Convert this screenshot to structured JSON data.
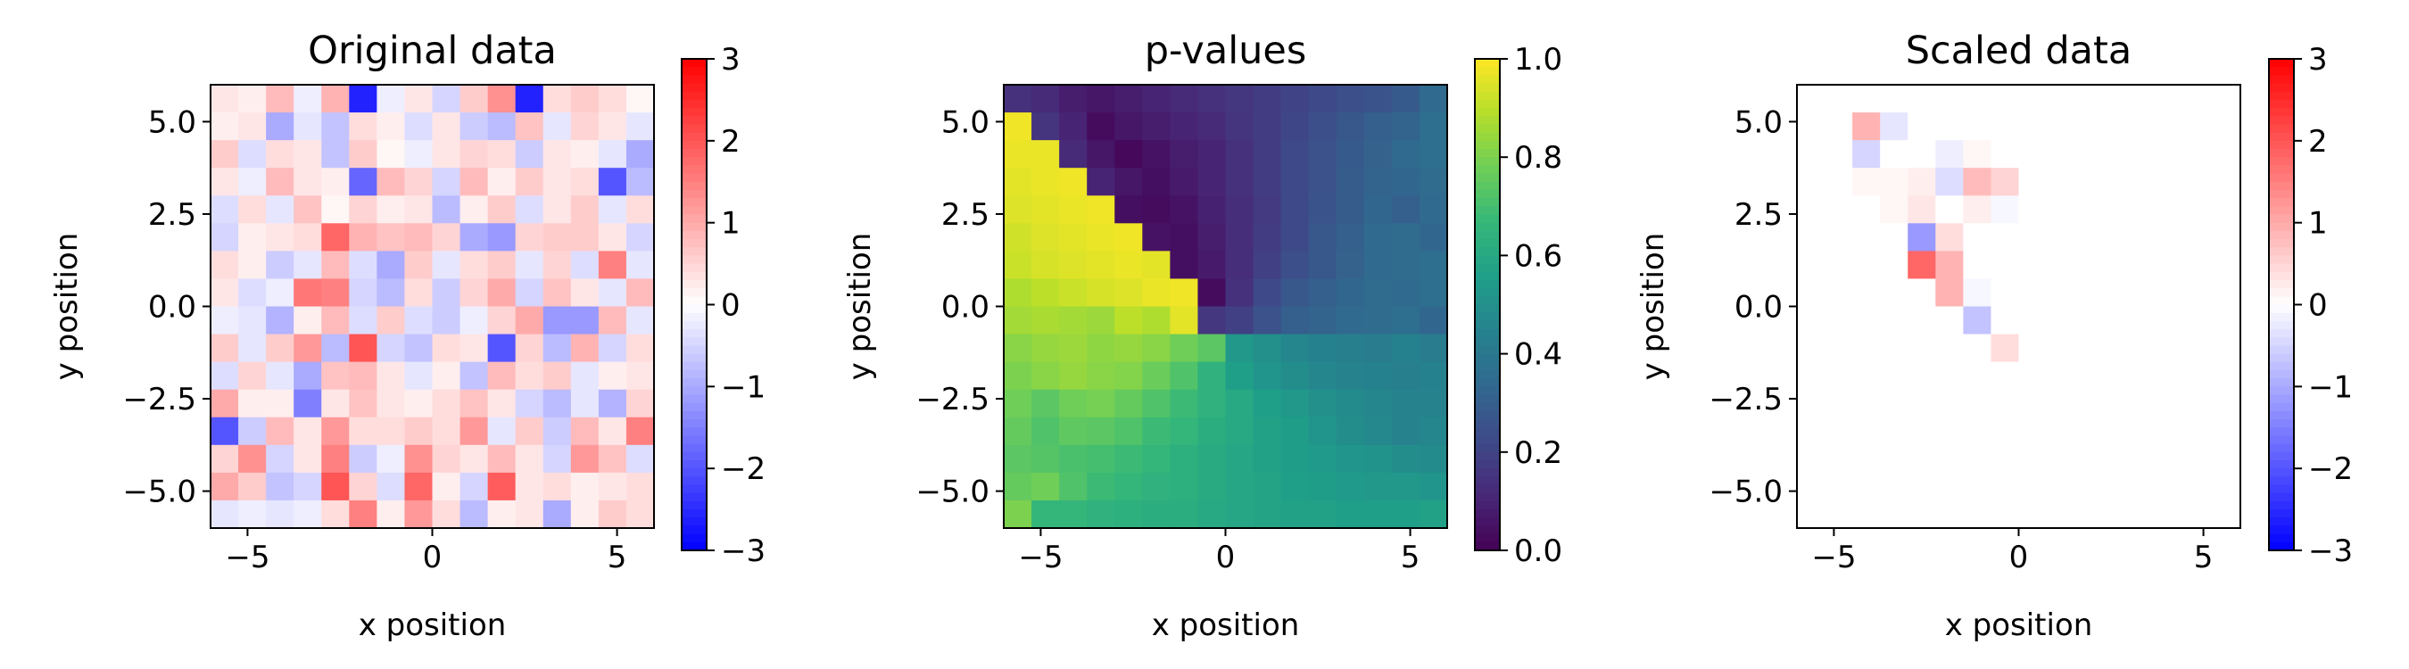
{
  "chart_data": [
    {
      "type": "heatmap",
      "title": "Original data",
      "xlabel": "x position",
      "ylabel": "y position",
      "xlim": [
        -6,
        6
      ],
      "ylim": [
        -6,
        6
      ],
      "x_ticks": [
        "−5",
        "0",
        "5"
      ],
      "y_ticks": [
        "−5.0",
        "−2.5",
        "0.0",
        "2.5",
        "5.0"
      ],
      "colormap": "bwr",
      "colorbar": {
        "range": [
          -3,
          3
        ],
        "ticks": [
          "−3",
          "−2",
          "−1",
          "0",
          "1",
          "2",
          "3"
        ]
      },
      "grid": {
        "nx": 16,
        "ny": 16,
        "cell_size": 0.75,
        "x0": -6,
        "y_top": 6
      },
      "values": [
        [
          0.3,
          0.2,
          0.8,
          -0.2,
          0.9,
          -2.6,
          -0.2,
          0.3,
          -0.5,
          0.6,
          1.3,
          -2.6,
          0.4,
          0.6,
          0.4,
          0.1
        ],
        [
          0.2,
          0.3,
          -1.0,
          -0.3,
          -0.7,
          0.4,
          0.2,
          -0.4,
          0.3,
          -0.6,
          -0.8,
          0.7,
          -0.3,
          0.5,
          0.3,
          -0.3
        ],
        [
          0.6,
          -0.4,
          0.4,
          0.3,
          -0.7,
          0.6,
          0.1,
          -0.2,
          0.3,
          0.5,
          0.4,
          -0.6,
          0.3,
          0.2,
          -0.3,
          -1.0
        ],
        [
          0.3,
          -0.2,
          0.8,
          0.3,
          0.2,
          -1.8,
          0.8,
          0.5,
          -0.5,
          0.8,
          0.2,
          0.6,
          0.3,
          0.4,
          -2.0,
          -0.8
        ],
        [
          -0.4,
          0.4,
          -0.3,
          0.7,
          0.1,
          0.5,
          0.2,
          0.3,
          -0.8,
          0.2,
          0.6,
          -0.4,
          0.3,
          0.6,
          -0.3,
          0.4
        ],
        [
          -0.5,
          0.2,
          0.3,
          0.4,
          1.8,
          0.9,
          0.7,
          0.8,
          0.5,
          -1.0,
          -1.2,
          0.5,
          0.6,
          0.6,
          0.3,
          -0.5
        ],
        [
          0.4,
          0.2,
          -0.6,
          -0.3,
          0.8,
          -0.4,
          -1.0,
          0.6,
          -0.3,
          0.4,
          0.6,
          -0.3,
          0.5,
          -0.4,
          1.5,
          -0.3
        ],
        [
          0.3,
          -0.4,
          -0.2,
          1.6,
          1.5,
          -0.5,
          -0.8,
          0.4,
          -0.6,
          0.5,
          1.0,
          -0.5,
          0.7,
          0.3,
          -0.3,
          0.8
        ],
        [
          -0.2,
          -0.3,
          -0.9,
          0.2,
          0.8,
          -0.4,
          0.6,
          -0.4,
          -0.6,
          -0.2,
          0.5,
          1.0,
          -1.2,
          -1.2,
          0.8,
          -0.3
        ],
        [
          0.6,
          -0.3,
          0.6,
          1.2,
          -0.8,
          2.0,
          -0.5,
          -0.7,
          0.4,
          0.3,
          -2.0,
          0.5,
          -0.8,
          0.9,
          -0.5,
          0.4
        ],
        [
          -0.4,
          0.5,
          -0.3,
          -1.0,
          0.7,
          0.8,
          0.3,
          -0.3,
          0.2,
          -0.7,
          0.8,
          0.4,
          0.6,
          -0.3,
          0.2,
          0.3
        ],
        [
          1.0,
          0.2,
          0.2,
          -1.5,
          0.3,
          0.7,
          0.3,
          0.2,
          0.4,
          0.7,
          0.3,
          -0.5,
          -0.8,
          -0.3,
          -0.9,
          0.5
        ],
        [
          -2.0,
          -0.6,
          0.8,
          0.3,
          1.2,
          0.4,
          0.4,
          0.6,
          0.4,
          1.2,
          -0.3,
          0.6,
          -0.6,
          0.8,
          0.3,
          1.5
        ],
        [
          0.5,
          1.3,
          -0.5,
          0.3,
          1.5,
          -0.6,
          -0.2,
          1.3,
          0.5,
          0.3,
          0.8,
          0.3,
          -0.5,
          1.2,
          0.7,
          -0.4
        ],
        [
          1.0,
          0.6,
          -0.7,
          -0.5,
          2.0,
          0.5,
          -0.4,
          1.8,
          0.2,
          -0.5,
          1.9,
          0.3,
          0.4,
          0.2,
          0.3,
          0.4
        ],
        [
          -0.3,
          -0.2,
          -0.3,
          -0.2,
          0.4,
          1.5,
          0.2,
          1.2,
          0.4,
          -0.8,
          0.2,
          0.3,
          -1.0,
          0.2,
          0.6,
          0.4
        ]
      ]
    },
    {
      "type": "heatmap",
      "title": "p-values",
      "xlabel": "x position",
      "ylabel": "y position",
      "xlim": [
        -6,
        6
      ],
      "ylim": [
        -6,
        6
      ],
      "x_ticks": [
        "−5",
        "0",
        "5"
      ],
      "y_ticks": [
        "−5.0",
        "−2.5",
        "0.0",
        "2.5",
        "5.0"
      ],
      "colormap": "viridis",
      "colorbar": {
        "range": [
          0,
          1
        ],
        "ticks": [
          "0.0",
          "0.2",
          "0.4",
          "0.6",
          "0.8",
          "1.0"
        ]
      },
      "grid": {
        "nx": 16,
        "ny": 16,
        "cell_size": 0.75,
        "x0": -6,
        "y_top": 6
      },
      "values": [
        [
          0.14,
          0.12,
          0.08,
          0.06,
          0.08,
          0.1,
          0.12,
          0.14,
          0.16,
          0.18,
          0.2,
          0.22,
          0.24,
          0.26,
          0.28,
          0.34
        ],
        [
          0.98,
          0.15,
          0.1,
          0.03,
          0.06,
          0.08,
          0.1,
          0.12,
          0.15,
          0.18,
          0.21,
          0.24,
          0.27,
          0.3,
          0.32,
          0.36
        ],
        [
          0.97,
          0.97,
          0.12,
          0.06,
          0.02,
          0.05,
          0.08,
          0.1,
          0.14,
          0.18,
          0.22,
          0.25,
          0.28,
          0.31,
          0.34,
          0.36
        ],
        [
          0.96,
          0.97,
          0.98,
          0.1,
          0.06,
          0.04,
          0.07,
          0.1,
          0.14,
          0.18,
          0.22,
          0.25,
          0.29,
          0.32,
          0.33,
          0.35
        ],
        [
          0.95,
          0.96,
          0.97,
          0.98,
          0.04,
          0.03,
          0.05,
          0.09,
          0.13,
          0.17,
          0.22,
          0.26,
          0.29,
          0.33,
          0.3,
          0.34
        ],
        [
          0.93,
          0.95,
          0.96,
          0.97,
          0.98,
          0.05,
          0.04,
          0.08,
          0.13,
          0.18,
          0.22,
          0.27,
          0.3,
          0.34,
          0.35,
          0.33
        ],
        [
          0.92,
          0.94,
          0.95,
          0.96,
          0.97,
          0.96,
          0.04,
          0.07,
          0.13,
          0.19,
          0.24,
          0.27,
          0.31,
          0.34,
          0.35,
          0.36
        ],
        [
          0.88,
          0.9,
          0.92,
          0.94,
          0.95,
          0.97,
          0.98,
          0.03,
          0.14,
          0.22,
          0.27,
          0.3,
          0.33,
          0.35,
          0.34,
          0.36
        ],
        [
          0.86,
          0.87,
          0.86,
          0.85,
          0.9,
          0.88,
          0.96,
          0.16,
          0.19,
          0.25,
          0.3,
          0.32,
          0.34,
          0.35,
          0.36,
          0.33
        ],
        [
          0.82,
          0.84,
          0.85,
          0.83,
          0.84,
          0.82,
          0.78,
          0.74,
          0.53,
          0.5,
          0.46,
          0.44,
          0.43,
          0.42,
          0.44,
          0.42
        ],
        [
          0.8,
          0.82,
          0.84,
          0.82,
          0.81,
          0.77,
          0.72,
          0.64,
          0.56,
          0.52,
          0.49,
          0.46,
          0.45,
          0.44,
          0.43,
          0.44
        ],
        [
          0.78,
          0.74,
          0.78,
          0.79,
          0.76,
          0.72,
          0.68,
          0.64,
          0.6,
          0.56,
          0.53,
          0.5,
          0.48,
          0.46,
          0.45,
          0.45
        ],
        [
          0.76,
          0.72,
          0.75,
          0.74,
          0.72,
          0.68,
          0.66,
          0.62,
          0.6,
          0.57,
          0.55,
          0.52,
          0.49,
          0.47,
          0.45,
          0.46
        ],
        [
          0.74,
          0.73,
          0.71,
          0.7,
          0.68,
          0.66,
          0.63,
          0.61,
          0.59,
          0.57,
          0.55,
          0.54,
          0.52,
          0.51,
          0.49,
          0.48
        ],
        [
          0.76,
          0.78,
          0.72,
          0.68,
          0.66,
          0.64,
          0.63,
          0.61,
          0.59,
          0.58,
          0.56,
          0.55,
          0.54,
          0.53,
          0.53,
          0.52
        ],
        [
          0.8,
          0.66,
          0.66,
          0.64,
          0.63,
          0.62,
          0.62,
          0.6,
          0.59,
          0.58,
          0.57,
          0.57,
          0.56,
          0.56,
          0.56,
          0.57
        ]
      ]
    },
    {
      "type": "heatmap",
      "title": "Scaled data",
      "xlabel": "x position",
      "ylabel": "y position",
      "xlim": [
        -6,
        6
      ],
      "ylim": [
        -6,
        6
      ],
      "x_ticks": [
        "−5",
        "0",
        "5"
      ],
      "y_ticks": [
        "−5.0",
        "−2.5",
        "0.0",
        "2.5",
        "5.0"
      ],
      "colormap": "bwr",
      "colorbar": {
        "range": [
          -3,
          3
        ],
        "ticks": [
          "−3",
          "−2",
          "−1",
          "0",
          "1",
          "2",
          "3"
        ]
      },
      "grid": {
        "nx": 16,
        "ny": 16,
        "cell_size": 0.75,
        "x0": -6,
        "y_top": 6
      },
      "values": [
        [
          0,
          0,
          0,
          0,
          0,
          0,
          0,
          0,
          0,
          0,
          0,
          0,
          0,
          0,
          0,
          0
        ],
        [
          0,
          0,
          0.9,
          -0.3,
          0,
          0,
          0,
          0,
          0,
          0,
          0,
          0,
          0,
          0,
          0,
          0
        ],
        [
          0,
          0,
          -0.5,
          0,
          0,
          -0.2,
          0.1,
          0,
          0,
          0,
          0,
          0,
          0,
          0,
          0,
          0
        ],
        [
          0,
          0,
          0.1,
          0.1,
          0.2,
          -0.4,
          0.8,
          0.5,
          0,
          0,
          0,
          0,
          0,
          0,
          0,
          0
        ],
        [
          0,
          0,
          0,
          0.1,
          0.3,
          0,
          0.2,
          -0.1,
          0,
          0,
          0,
          0,
          0,
          0,
          0,
          0
        ],
        [
          0,
          0,
          0,
          0,
          -1.2,
          0.4,
          0,
          0,
          0,
          0,
          0,
          0,
          0,
          0,
          0,
          0
        ],
        [
          0,
          0,
          0,
          0,
          1.8,
          0.9,
          0,
          0,
          0,
          0,
          0,
          0,
          0,
          0,
          0,
          0
        ],
        [
          0,
          0,
          0,
          0,
          0,
          0.9,
          -0.1,
          0,
          0,
          0,
          0,
          0,
          0,
          0,
          0,
          0
        ],
        [
          0,
          0,
          0,
          0,
          0,
          0,
          -0.7,
          0,
          0,
          0,
          0,
          0,
          0,
          0,
          0,
          0
        ],
        [
          0,
          0,
          0,
          0,
          0,
          0,
          0,
          0.4,
          0,
          0,
          0,
          0,
          0,
          0,
          0,
          0
        ],
        [
          0,
          0,
          0,
          0,
          0,
          0,
          0,
          0,
          0,
          0,
          0,
          0,
          0,
          0,
          0,
          0
        ],
        [
          0,
          0,
          0,
          0,
          0,
          0,
          0,
          0,
          0,
          0,
          0,
          0,
          0,
          0,
          0,
          0
        ],
        [
          0,
          0,
          0,
          0,
          0,
          0,
          0,
          0,
          0,
          0,
          0,
          0,
          0,
          0,
          0,
          0
        ],
        [
          0,
          0,
          0,
          0,
          0,
          0,
          0,
          0,
          0,
          0,
          0,
          0,
          0,
          0,
          0,
          0
        ],
        [
          0,
          0,
          0,
          0,
          0,
          0,
          0,
          0,
          0,
          0,
          0,
          0,
          0,
          0,
          0,
          0
        ],
        [
          0,
          0,
          0,
          0,
          0,
          0,
          0,
          0,
          0,
          0,
          0,
          0,
          0,
          0,
          0,
          0
        ]
      ]
    }
  ]
}
